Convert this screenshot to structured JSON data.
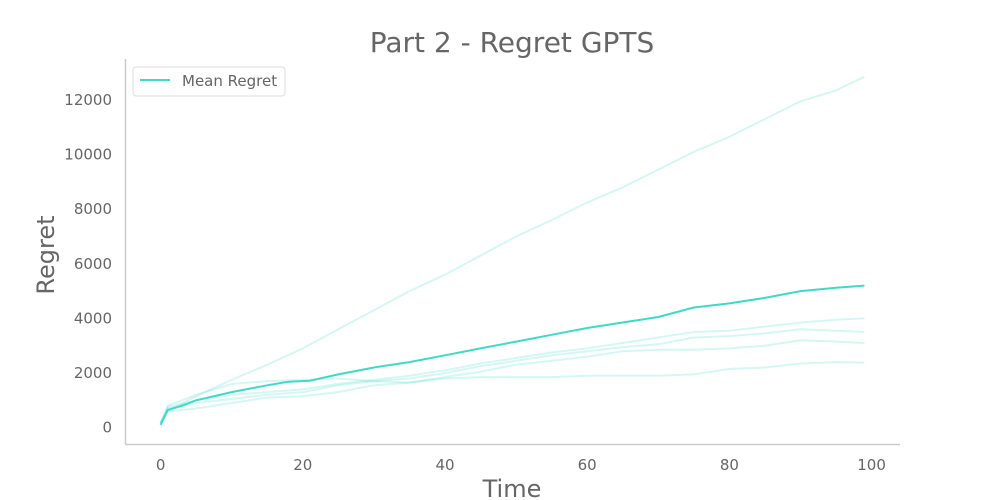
{
  "chart_data": {
    "type": "line",
    "title": "Part 2 - Regret GPTS",
    "xlabel": "Time",
    "ylabel": "Regret",
    "xlim": [
      -5,
      104
    ],
    "ylim": [
      -600,
      13500
    ],
    "xticks": [
      0,
      20,
      40,
      60,
      80,
      100
    ],
    "yticks": [
      0,
      2000,
      4000,
      6000,
      8000,
      10000,
      12000
    ],
    "legend": {
      "position": "top-left",
      "entries": [
        "Mean Regret"
      ]
    },
    "grid": false,
    "colors": {
      "mean": "#40d9c8",
      "run": "#40d9c8"
    },
    "mean": {
      "name": "Mean Regret",
      "x": [
        0,
        1,
        3,
        5,
        10,
        15,
        18,
        21,
        25,
        30,
        35,
        40,
        45,
        50,
        55,
        60,
        65,
        70,
        75,
        80,
        85,
        90,
        95,
        99
      ],
      "y": [
        100,
        650,
        800,
        1000,
        1300,
        1550,
        1680,
        1720,
        1950,
        2200,
        2400,
        2650,
        2900,
        3150,
        3400,
        3650,
        3850,
        4050,
        4400,
        4550,
        4750,
        5000,
        5120,
        5200
      ]
    },
    "runs": [
      {
        "x": [
          0,
          1,
          5,
          10,
          15,
          20,
          25,
          30,
          35,
          40,
          45,
          50,
          55,
          60,
          65,
          70,
          75,
          80,
          85,
          90,
          95,
          99
        ],
        "y": [
          200,
          600,
          1150,
          1750,
          2300,
          2900,
          3600,
          4300,
          5000,
          5600,
          6300,
          7000,
          7600,
          8250,
          8800,
          9450,
          10100,
          10650,
          11300,
          11950,
          12350,
          12850
        ]
      },
      {
        "x": [
          0,
          1,
          5,
          10,
          15,
          20,
          25,
          30,
          35,
          40,
          45,
          50,
          55,
          60,
          65,
          70,
          75,
          80,
          85,
          90,
          95,
          99
        ],
        "y": [
          150,
          800,
          1200,
          1600,
          1700,
          1750,
          1800,
          1700,
          1650,
          1800,
          1850,
          1850,
          1850,
          1900,
          1900,
          1900,
          1950,
          2150,
          2200,
          2350,
          2400,
          2380
        ]
      },
      {
        "x": [
          0,
          1,
          5,
          10,
          15,
          20,
          25,
          30,
          35,
          40,
          45,
          50,
          55,
          60,
          65,
          70,
          75,
          80,
          85,
          90,
          95,
          99
        ],
        "y": [
          150,
          600,
          700,
          900,
          1100,
          1150,
          1300,
          1550,
          1650,
          1850,
          2050,
          2300,
          2450,
          2600,
          2800,
          2850,
          2850,
          2900,
          3000,
          3200,
          3150,
          3100
        ]
      },
      {
        "x": [
          0,
          1,
          5,
          10,
          15,
          20,
          25,
          30,
          35,
          40,
          45,
          50,
          55,
          60,
          65,
          70,
          75,
          80,
          85,
          90,
          95,
          99
        ],
        "y": [
          150,
          700,
          900,
          1050,
          1200,
          1300,
          1550,
          1700,
          1800,
          2000,
          2250,
          2450,
          2650,
          2800,
          2950,
          3050,
          3300,
          3350,
          3450,
          3600,
          3550,
          3500
        ]
      },
      {
        "x": [
          0,
          1,
          5,
          10,
          15,
          20,
          25,
          30,
          35,
          40,
          45,
          50,
          55,
          60,
          65,
          70,
          75,
          80,
          85,
          90,
          95,
          99
        ],
        "y": [
          150,
          750,
          1000,
          1200,
          1300,
          1400,
          1600,
          1750,
          1900,
          2100,
          2350,
          2550,
          2750,
          2900,
          3100,
          3300,
          3500,
          3550,
          3700,
          3850,
          3950,
          4000
        ]
      }
    ]
  }
}
